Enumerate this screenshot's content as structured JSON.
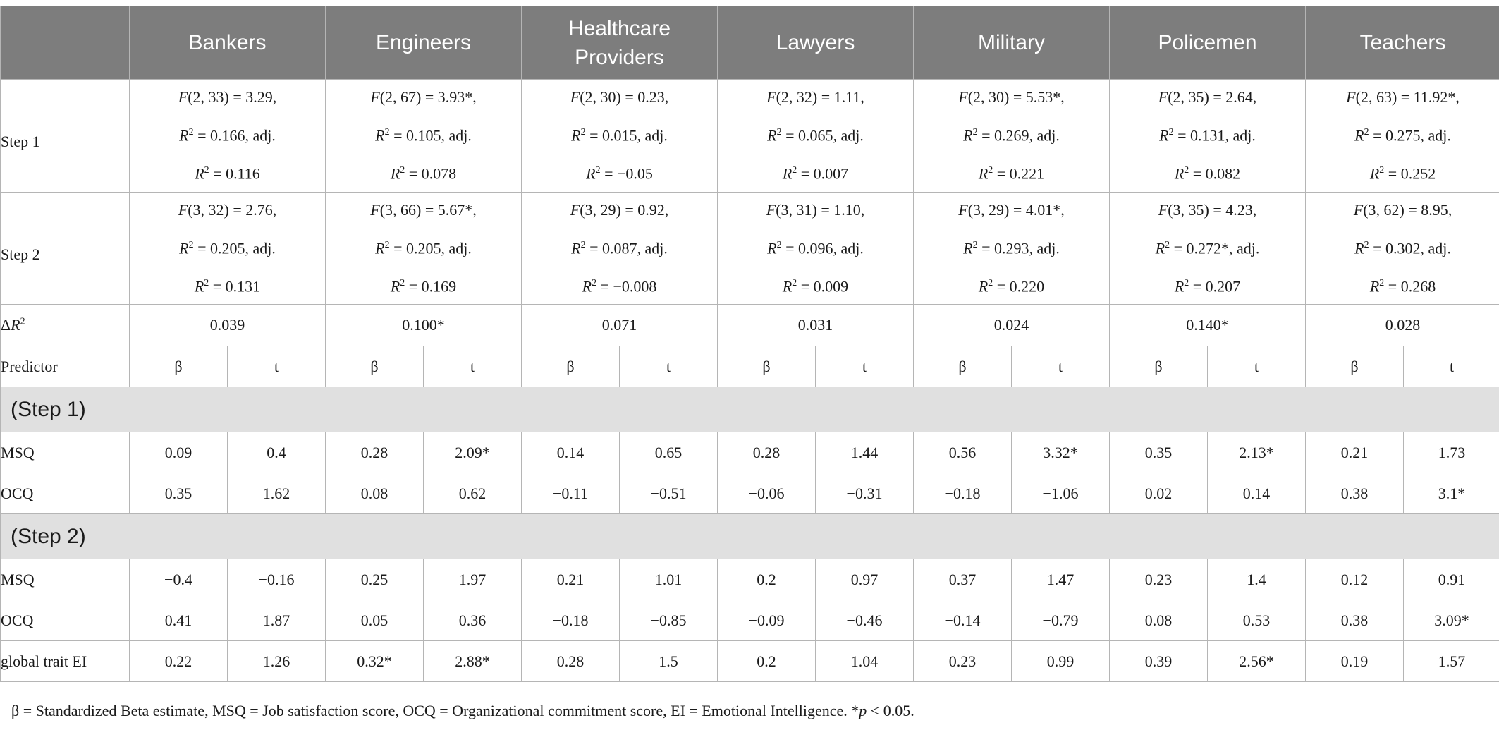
{
  "header": {
    "columns": [
      "Bankers",
      "Engineers",
      "Healthcare Providers",
      "Lawyers",
      "Military",
      "Policemen",
      "Teachers"
    ]
  },
  "step1": {
    "label": "Step 1",
    "cells": [
      [
        "F(2, 33) = 3.29,",
        "R2 = 0.166, adj.",
        "R2 = 0.116"
      ],
      [
        "F(2, 67) = 3.93*,",
        "R2 = 0.105, adj.",
        "R2 = 0.078"
      ],
      [
        "F(2, 30) = 0.23,",
        "R2 = 0.015, adj.",
        "R2 = −0.05"
      ],
      [
        "F(2, 32) = 1.11,",
        "R2 = 0.065, adj.",
        "R2 = 0.007"
      ],
      [
        "F(2, 30) = 5.53*,",
        "R2 = 0.269, adj.",
        "R2 = 0.221"
      ],
      [
        "F(2, 35) = 2.64,",
        "R2 = 0.131, adj.",
        "R2 = 0.082"
      ],
      [
        "F(2, 63) = 11.92*,",
        "R2 = 0.275, adj.",
        "R2 = 0.252"
      ]
    ]
  },
  "step2": {
    "label": "Step 2",
    "cells": [
      [
        "F(3, 32) = 2.76,",
        "R2 = 0.205, adj.",
        "R2 = 0.131"
      ],
      [
        "F(3, 66) = 5.67*,",
        "R2 = 0.205, adj.",
        "R2 = 0.169"
      ],
      [
        "F(3, 29) = 0.92,",
        "R2 = 0.087, adj.",
        "R2 = −0.008"
      ],
      [
        "F(3, 31) = 1.10,",
        "R2 = 0.096, adj.",
        "R2 = 0.009"
      ],
      [
        "F(3, 29) = 4.01*,",
        "R2 = 0.293, adj.",
        "R2 = 0.220"
      ],
      [
        "F(3, 35) = 4.23,",
        "R2 = 0.272*, adj.",
        "R2 = 0.207"
      ],
      [
        "F(3, 62) = 8.95,",
        "R2 = 0.302, adj.",
        "R2 = 0.268"
      ]
    ]
  },
  "delta_r2": {
    "label": "ΔR2",
    "values": [
      "0.039",
      "0.100*",
      "0.071",
      "0.031",
      "0.024",
      "0.140*",
      "0.028"
    ]
  },
  "predictor_row": {
    "label": "Predictor",
    "beta": "β",
    "t": "t"
  },
  "sections": [
    {
      "title": "(Step 1)",
      "rows": [
        {
          "label": "MSQ",
          "values": [
            "0.09",
            "0.4",
            "0.28",
            "2.09*",
            "0.14",
            "0.65",
            "0.28",
            "1.44",
            "0.56",
            "3.32*",
            "0.35",
            "2.13*",
            "0.21",
            "1.73"
          ]
        },
        {
          "label": "OCQ",
          "values": [
            "0.35",
            "1.62",
            "0.08",
            "0.62",
            "−0.11",
            "−0.51",
            "−0.06",
            "−0.31",
            "−0.18",
            "−1.06",
            "0.02",
            "0.14",
            "0.38",
            "3.1*"
          ]
        }
      ]
    },
    {
      "title": "(Step 2)",
      "rows": [
        {
          "label": "MSQ",
          "values": [
            "−0.4",
            "−0.16",
            "0.25",
            "1.97",
            "0.21",
            "1.01",
            "0.2",
            "0.97",
            "0.37",
            "1.47",
            "0.23",
            "1.4",
            "0.12",
            "0.91"
          ]
        },
        {
          "label": "OCQ",
          "values": [
            "0.41",
            "1.87",
            "0.05",
            "0.36",
            "−0.18",
            "−0.85",
            "−0.09",
            "−0.46",
            "−0.14",
            "−0.79",
            "0.08",
            "0.53",
            "0.38",
            "3.09*"
          ]
        },
        {
          "label": "global trait EI",
          "values": [
            "0.22",
            "1.26",
            "0.32*",
            "2.88*",
            "0.28",
            "1.5",
            "0.2",
            "1.04",
            "0.23",
            "0.99",
            "0.39",
            "2.56*",
            "0.19",
            "1.57"
          ]
        }
      ]
    }
  ],
  "footnote": "β = Standardized Beta estimate, MSQ = Job satisfaction score, OCQ = Organizational commitment score, EI = Emotional Intelligence. *p < 0.05."
}
